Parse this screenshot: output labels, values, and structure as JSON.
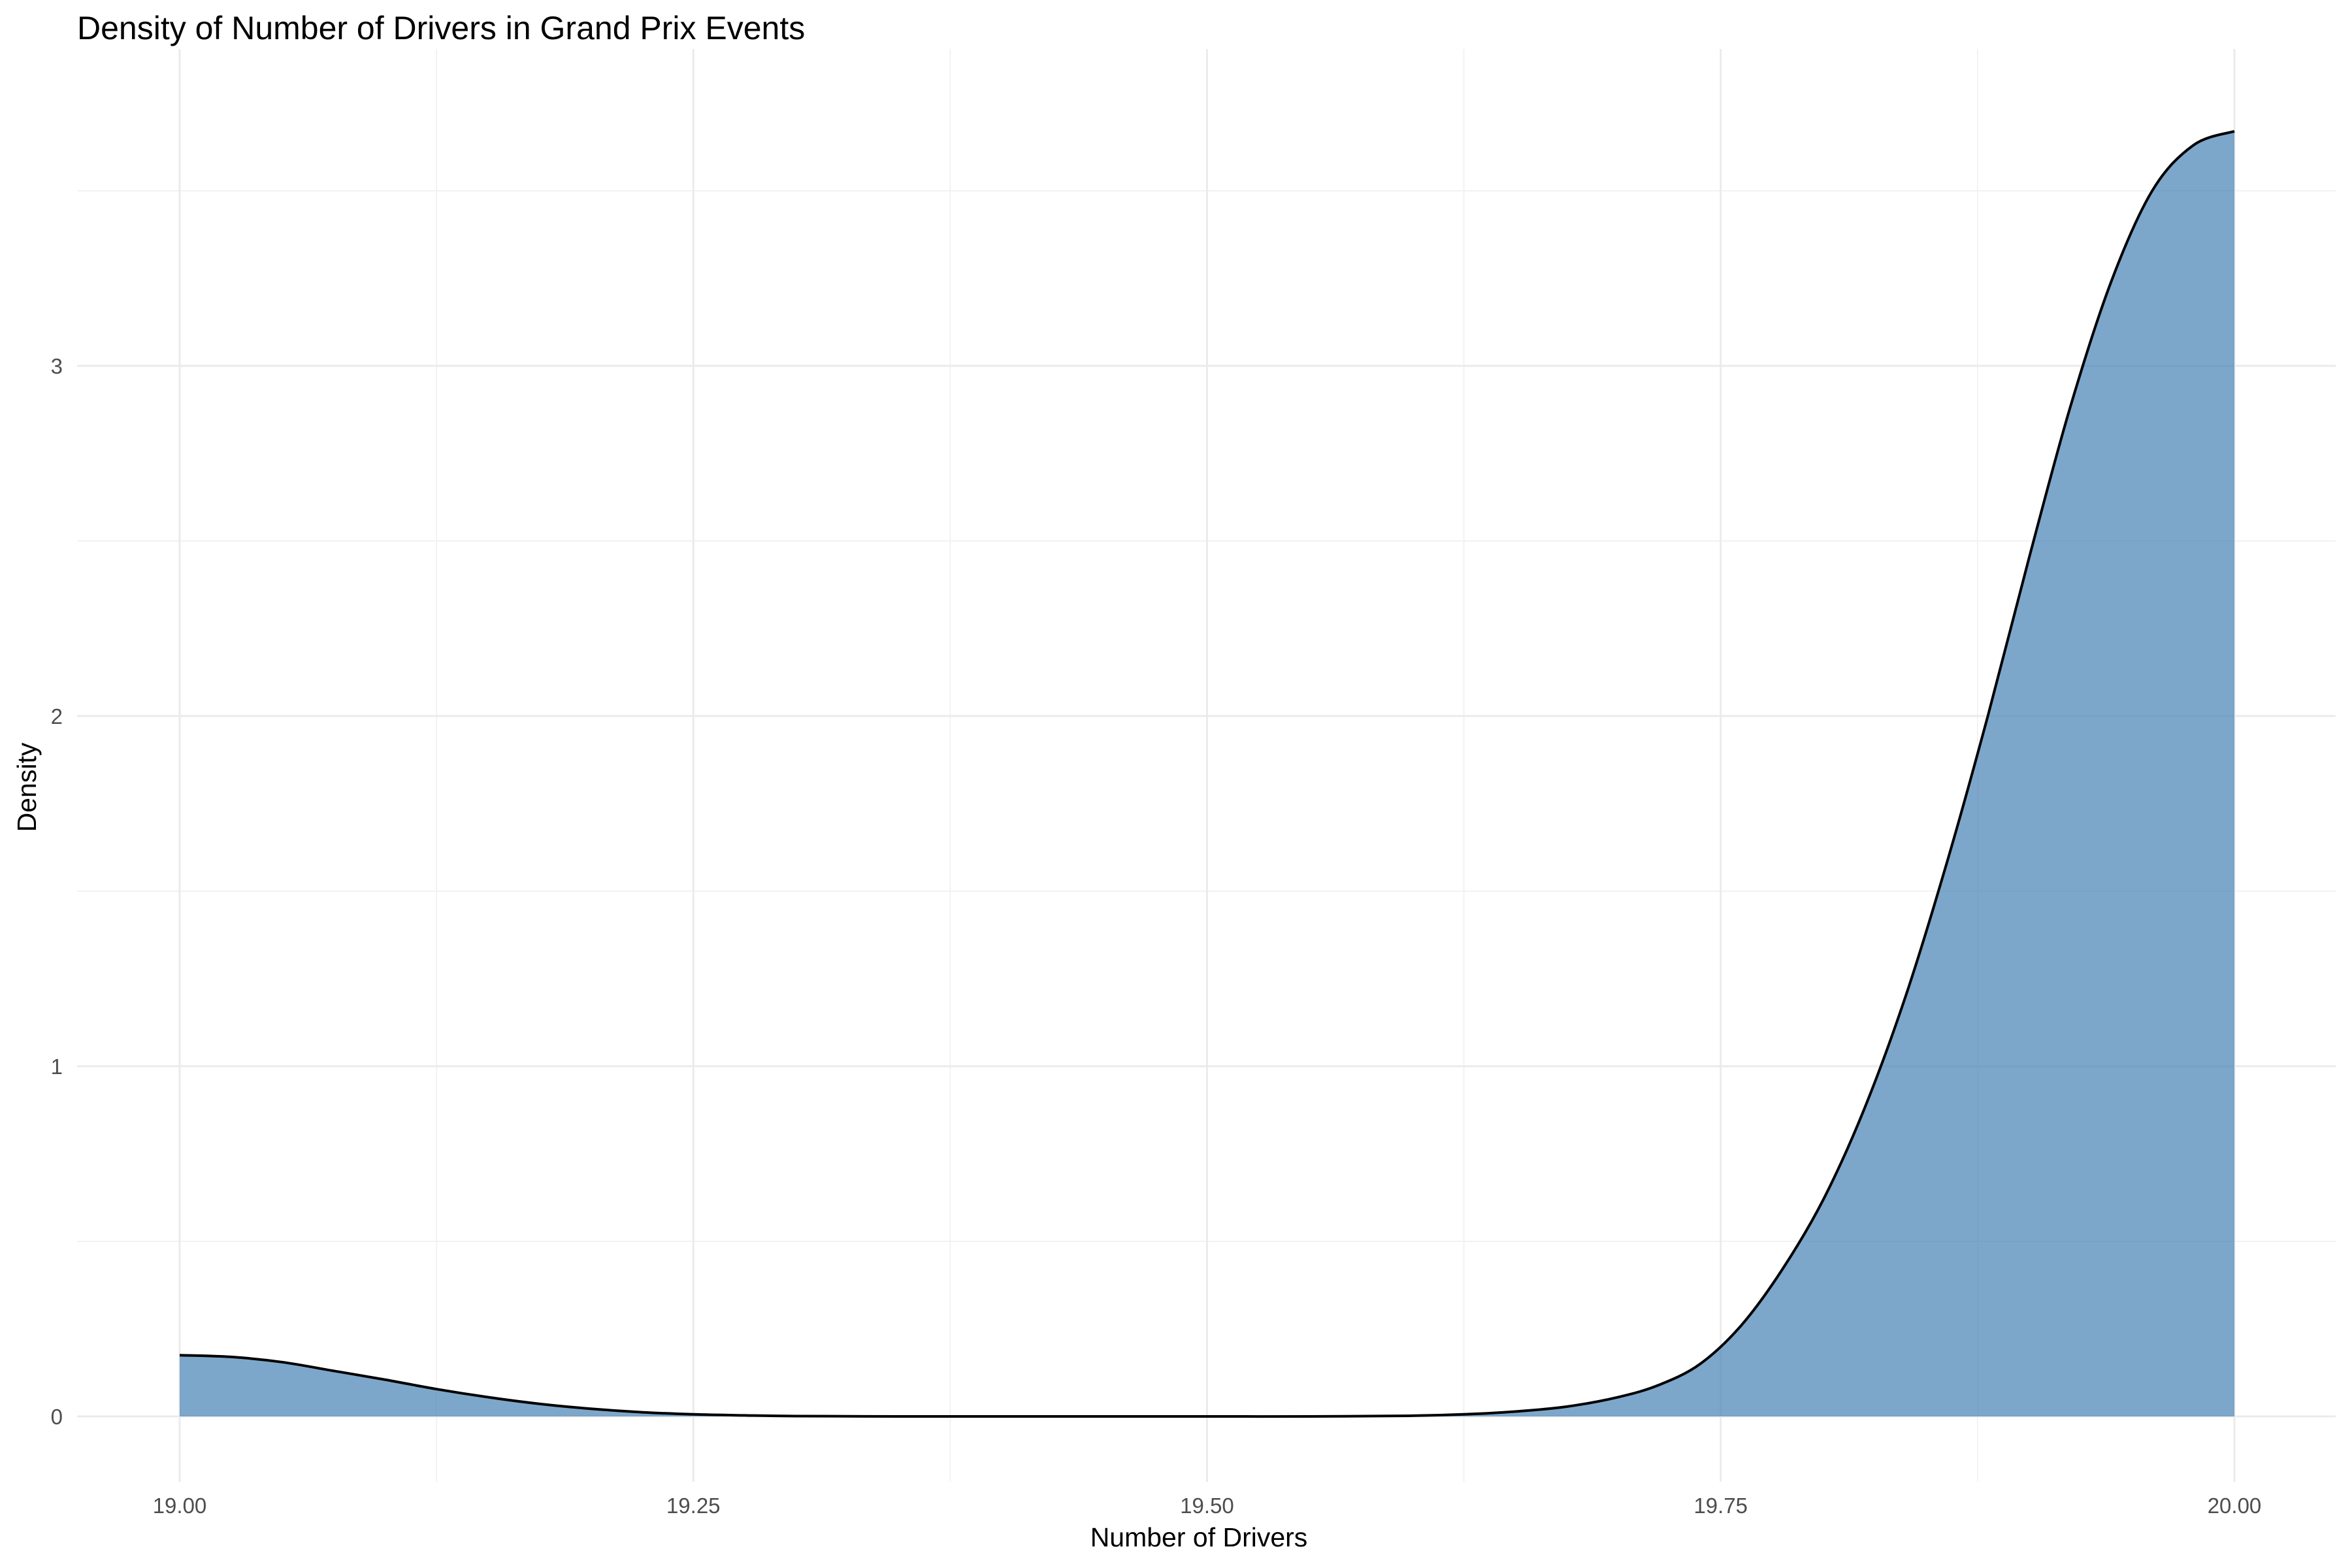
{
  "chart_data": {
    "type": "area",
    "title": "Density of Number of Drivers in Grand Prix Events",
    "xlabel": "Number of Drivers",
    "ylabel": "Density",
    "xlim": [
      19.0,
      20.0
    ],
    "ylim": [
      0,
      3.68
    ],
    "x_ticks": [
      19.0,
      19.25,
      19.5,
      19.75,
      20.0
    ],
    "x_tick_labels": [
      "19.00",
      "19.25",
      "19.50",
      "19.75",
      "20.00"
    ],
    "y_ticks": [
      0,
      1,
      2,
      3
    ],
    "y_tick_labels": [
      "0",
      "1",
      "2",
      "3"
    ],
    "grid": true,
    "legend": "none",
    "fill_color": "#4682b4",
    "fill_opacity": 0.7,
    "line_color": "#000000",
    "series": [
      {
        "x": [
          19.0,
          19.025,
          19.05,
          19.075,
          19.1,
          19.125,
          19.15,
          19.175,
          19.2,
          19.225,
          19.25,
          19.275,
          19.3,
          19.35,
          19.4,
          19.45,
          19.5,
          19.55,
          19.6,
          19.625,
          19.65,
          19.675,
          19.7,
          19.72,
          19.74,
          19.76,
          19.78,
          19.8,
          19.82,
          19.84,
          19.86,
          19.88,
          19.9,
          19.92,
          19.94,
          19.96,
          19.98,
          20.0
        ],
        "y": [
          0.175,
          0.17,
          0.155,
          0.13,
          0.105,
          0.078,
          0.055,
          0.036,
          0.022,
          0.012,
          0.006,
          0.003,
          0.001,
          0.0,
          0.0,
          0.0,
          0.0,
          0.0,
          0.002,
          0.006,
          0.014,
          0.028,
          0.055,
          0.09,
          0.15,
          0.26,
          0.42,
          0.62,
          0.88,
          1.2,
          1.58,
          2.0,
          2.45,
          2.88,
          3.24,
          3.5,
          3.63,
          3.67
        ]
      }
    ]
  }
}
